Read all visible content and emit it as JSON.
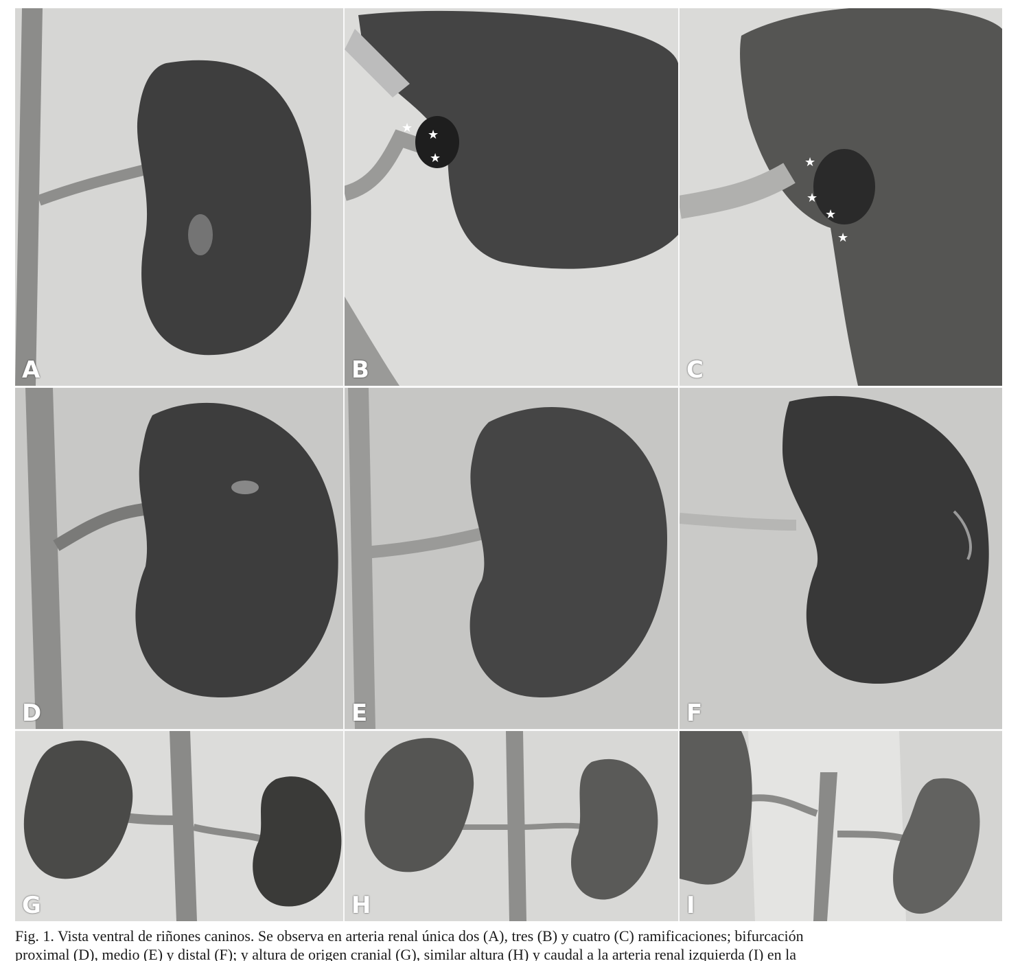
{
  "figure": {
    "panels": [
      {
        "label": "A"
      },
      {
        "label": "B"
      },
      {
        "label": "C"
      },
      {
        "label": "D"
      },
      {
        "label": "E"
      },
      {
        "label": "F"
      },
      {
        "label": "G"
      },
      {
        "label": "H"
      },
      {
        "label": "I"
      }
    ],
    "caption": {
      "line1": "Fig. 1. Vista ventral de riñones caninos. Se observa en arteria renal única dos (A), tres (B) y cuatro (C) ramificaciones; bifurcación",
      "line2": "proximal (D), medio (E) y distal (F); y altura de origen cranial (G), similar altura (H) y caudal a la arteria renal izquierda (I) en la"
    },
    "colors": {
      "background": "#cfcfcf",
      "kidney": "#3c3c3c",
      "vessel": "#8a8a8a",
      "label": "#ffffff"
    }
  }
}
